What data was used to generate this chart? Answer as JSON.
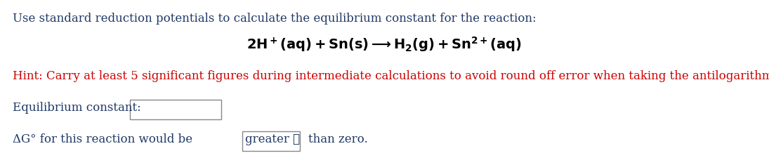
{
  "bg_color": "#ffffff",
  "line1_text": "Use standard reduction potentials to calculate the equilibrium constant for the reaction:",
  "line1_color": "#1f3864",
  "line1_fontsize": 12,
  "hint_text": "Hint: Carry at least 5 significant figures during intermediate calculations to avoid round off error when taking the antilogarithm.",
  "hint_color": "#cc0000",
  "hint_fontsize": 12,
  "eq_label_text": "Equilibrium constant:",
  "eq_label_fontsize": 12,
  "eq_label_color": "#1f3864",
  "ag_text1": "ΔG° for this reaction would be",
  "ag_text3": "than zero.",
  "ag_fontsize": 12,
  "ag_color": "#1f3864",
  "dropdown_text": "greater ✔",
  "reaction_fontsize": 13,
  "reaction_color": "#000000"
}
